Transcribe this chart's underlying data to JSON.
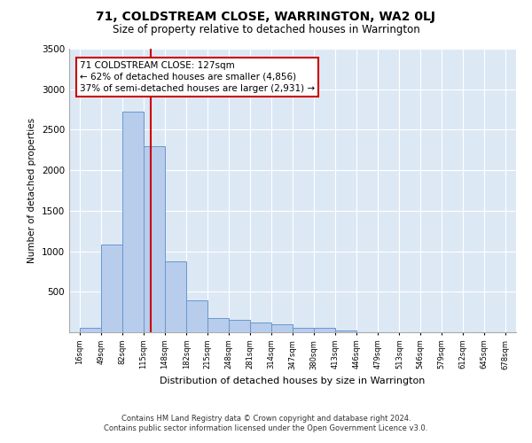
{
  "title": "71, COLDSTREAM CLOSE, WARRINGTON, WA2 0LJ",
  "subtitle": "Size of property relative to detached houses in Warrington",
  "xlabel": "Distribution of detached houses by size in Warrington",
  "ylabel": "Number of detached properties",
  "property_size": 127,
  "annotation_line1": "71 COLDSTREAM CLOSE: 127sqm",
  "annotation_line2": "← 62% of detached houses are smaller (4,856)",
  "annotation_line3": "37% of semi-detached houses are larger (2,931) →",
  "bar_color": "#b8ccec",
  "bar_edge_color": "#6699cc",
  "vline_color": "#cc0000",
  "annotation_box_color": "#cc0000",
  "background_color": "#dde8f5",
  "grid_color": "#ffffff",
  "bin_edges": [
    16,
    49,
    82,
    115,
    148,
    182,
    215,
    248,
    281,
    314,
    347,
    380,
    413,
    446,
    479,
    513,
    546,
    579,
    612,
    645,
    678
  ],
  "bin_counts": [
    50,
    1080,
    2720,
    2300,
    880,
    390,
    175,
    150,
    120,
    100,
    60,
    50,
    20,
    0,
    0,
    0,
    0,
    0,
    0,
    0
  ],
  "ylim": [
    0,
    3500
  ],
  "yticks": [
    0,
    500,
    1000,
    1500,
    2000,
    2500,
    3000,
    3500
  ],
  "footer_line1": "Contains HM Land Registry data © Crown copyright and database right 2024.",
  "footer_line2": "Contains public sector information licensed under the Open Government Licence v3.0."
}
